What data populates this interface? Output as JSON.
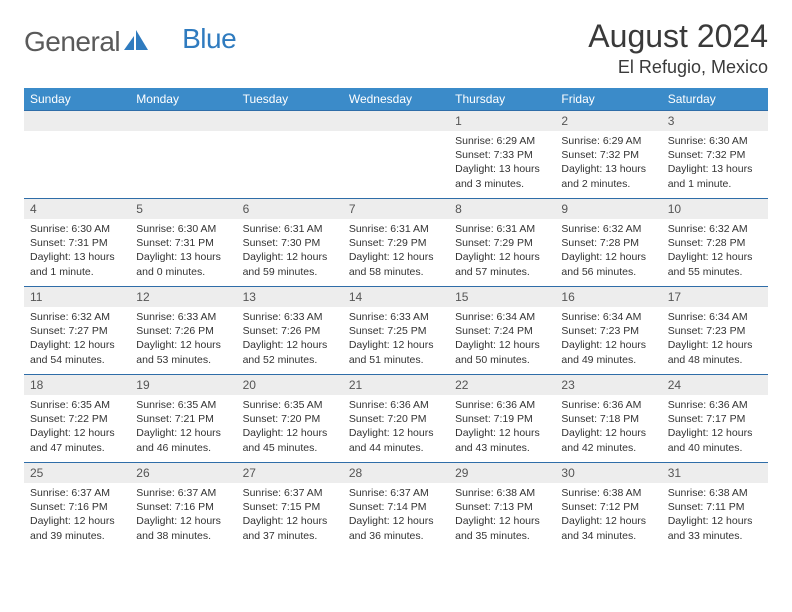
{
  "logo": {
    "text1": "General",
    "text2": "Blue",
    "text_color_1": "#5a5a5a",
    "text_color_2": "#2f7bbf",
    "icon_color": "#2f7bbf",
    "font_size": 28
  },
  "header": {
    "month": "August 2024",
    "location": "El Refugio, Mexico",
    "month_font_size": 32,
    "location_font_size": 18,
    "text_color": "#3a3a3a"
  },
  "calendar": {
    "header_bg": "#3b8bc9",
    "header_fg": "#ffffff",
    "header_font_size": 12,
    "daynum_bg": "#ededed",
    "daynum_fg": "#555555",
    "daynum_font_size": 12,
    "content_font_size": 10.5,
    "content_fg": "#333333",
    "border_color": "#2f6da8",
    "days": [
      "Sunday",
      "Monday",
      "Tuesday",
      "Wednesday",
      "Thursday",
      "Friday",
      "Saturday"
    ],
    "weeks": [
      [
        null,
        null,
        null,
        null,
        {
          "n": "1",
          "sunrise": "6:29 AM",
          "sunset": "7:33 PM",
          "daylight": "13 hours and 3 minutes."
        },
        {
          "n": "2",
          "sunrise": "6:29 AM",
          "sunset": "7:32 PM",
          "daylight": "13 hours and 2 minutes."
        },
        {
          "n": "3",
          "sunrise": "6:30 AM",
          "sunset": "7:32 PM",
          "daylight": "13 hours and 1 minute."
        }
      ],
      [
        {
          "n": "4",
          "sunrise": "6:30 AM",
          "sunset": "7:31 PM",
          "daylight": "13 hours and 1 minute."
        },
        {
          "n": "5",
          "sunrise": "6:30 AM",
          "sunset": "7:31 PM",
          "daylight": "13 hours and 0 minutes."
        },
        {
          "n": "6",
          "sunrise": "6:31 AM",
          "sunset": "7:30 PM",
          "daylight": "12 hours and 59 minutes."
        },
        {
          "n": "7",
          "sunrise": "6:31 AM",
          "sunset": "7:29 PM",
          "daylight": "12 hours and 58 minutes."
        },
        {
          "n": "8",
          "sunrise": "6:31 AM",
          "sunset": "7:29 PM",
          "daylight": "12 hours and 57 minutes."
        },
        {
          "n": "9",
          "sunrise": "6:32 AM",
          "sunset": "7:28 PM",
          "daylight": "12 hours and 56 minutes."
        },
        {
          "n": "10",
          "sunrise": "6:32 AM",
          "sunset": "7:28 PM",
          "daylight": "12 hours and 55 minutes."
        }
      ],
      [
        {
          "n": "11",
          "sunrise": "6:32 AM",
          "sunset": "7:27 PM",
          "daylight": "12 hours and 54 minutes."
        },
        {
          "n": "12",
          "sunrise": "6:33 AM",
          "sunset": "7:26 PM",
          "daylight": "12 hours and 53 minutes."
        },
        {
          "n": "13",
          "sunrise": "6:33 AM",
          "sunset": "7:26 PM",
          "daylight": "12 hours and 52 minutes."
        },
        {
          "n": "14",
          "sunrise": "6:33 AM",
          "sunset": "7:25 PM",
          "daylight": "12 hours and 51 minutes."
        },
        {
          "n": "15",
          "sunrise": "6:34 AM",
          "sunset": "7:24 PM",
          "daylight": "12 hours and 50 minutes."
        },
        {
          "n": "16",
          "sunrise": "6:34 AM",
          "sunset": "7:23 PM",
          "daylight": "12 hours and 49 minutes."
        },
        {
          "n": "17",
          "sunrise": "6:34 AM",
          "sunset": "7:23 PM",
          "daylight": "12 hours and 48 minutes."
        }
      ],
      [
        {
          "n": "18",
          "sunrise": "6:35 AM",
          "sunset": "7:22 PM",
          "daylight": "12 hours and 47 minutes."
        },
        {
          "n": "19",
          "sunrise": "6:35 AM",
          "sunset": "7:21 PM",
          "daylight": "12 hours and 46 minutes."
        },
        {
          "n": "20",
          "sunrise": "6:35 AM",
          "sunset": "7:20 PM",
          "daylight": "12 hours and 45 minutes."
        },
        {
          "n": "21",
          "sunrise": "6:36 AM",
          "sunset": "7:20 PM",
          "daylight": "12 hours and 44 minutes."
        },
        {
          "n": "22",
          "sunrise": "6:36 AM",
          "sunset": "7:19 PM",
          "daylight": "12 hours and 43 minutes."
        },
        {
          "n": "23",
          "sunrise": "6:36 AM",
          "sunset": "7:18 PM",
          "daylight": "12 hours and 42 minutes."
        },
        {
          "n": "24",
          "sunrise": "6:36 AM",
          "sunset": "7:17 PM",
          "daylight": "12 hours and 40 minutes."
        }
      ],
      [
        {
          "n": "25",
          "sunrise": "6:37 AM",
          "sunset": "7:16 PM",
          "daylight": "12 hours and 39 minutes."
        },
        {
          "n": "26",
          "sunrise": "6:37 AM",
          "sunset": "7:16 PM",
          "daylight": "12 hours and 38 minutes."
        },
        {
          "n": "27",
          "sunrise": "6:37 AM",
          "sunset": "7:15 PM",
          "daylight": "12 hours and 37 minutes."
        },
        {
          "n": "28",
          "sunrise": "6:37 AM",
          "sunset": "7:14 PM",
          "daylight": "12 hours and 36 minutes."
        },
        {
          "n": "29",
          "sunrise": "6:38 AM",
          "sunset": "7:13 PM",
          "daylight": "12 hours and 35 minutes."
        },
        {
          "n": "30",
          "sunrise": "6:38 AM",
          "sunset": "7:12 PM",
          "daylight": "12 hours and 34 minutes."
        },
        {
          "n": "31",
          "sunrise": "6:38 AM",
          "sunset": "7:11 PM",
          "daylight": "12 hours and 33 minutes."
        }
      ]
    ]
  },
  "labels": {
    "sunrise": "Sunrise:",
    "sunset": "Sunset:",
    "daylight": "Daylight:"
  }
}
